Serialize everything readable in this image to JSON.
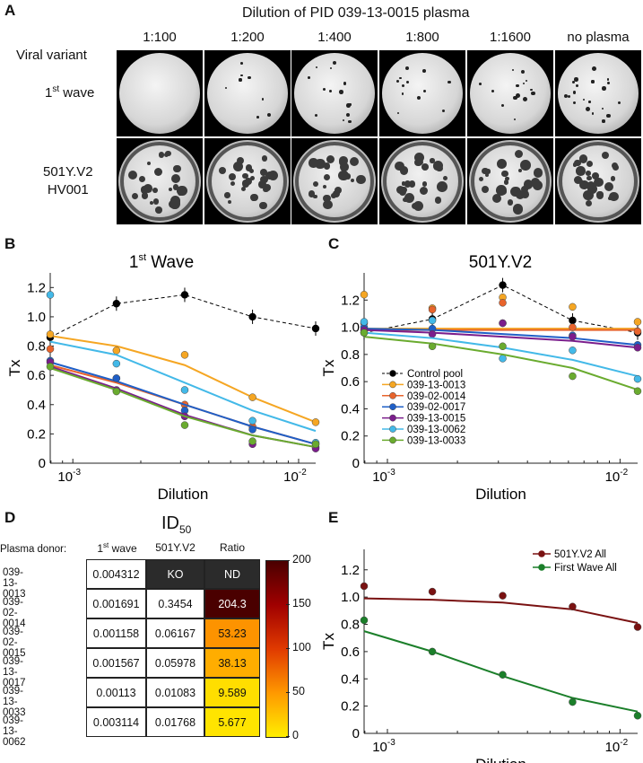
{
  "panels": {
    "A": "A",
    "B": "B",
    "C": "C",
    "D": "D",
    "E": "E"
  },
  "panelA": {
    "title": "Dilution of PID 039-13-0015 plasma",
    "dilutions": [
      "1:100",
      "1:200",
      "1:400",
      "1:800",
      "1:1600",
      "no plasma"
    ],
    "header_row": "Viral variant",
    "row1_label_main": "1",
    "row1_label_sup": "st",
    "row1_label_rest": " wave",
    "row2_label_line1": "501Y.V2",
    "row2_label_line2": "HV001"
  },
  "chart_data": [
    {
      "panel": "B",
      "type": "scatter",
      "title_main": "1",
      "title_sup": "st",
      "title_rest": " Wave",
      "xlabel": "Dilution",
      "ylabel": "Tx",
      "xscale": "log",
      "xlim": [
        0.000794,
        0.0119
      ],
      "ylim": [
        0,
        1.3
      ],
      "yticks": [
        "0",
        "0.2",
        "0.4",
        "0.6",
        "0.8",
        "1.0",
        "1.2"
      ],
      "xticks": [
        {
          "value": 0.001,
          "base": "10",
          "exp": "-3"
        },
        {
          "value": 0.01,
          "base": "10",
          "exp": "-2"
        }
      ],
      "x": [
        0.000794,
        0.00156,
        0.00313,
        0.00625,
        0.0119
      ],
      "control": {
        "name": "Control pool",
        "values": [
          0.86,
          1.09,
          1.15,
          1.0,
          0.92
        ],
        "color": "#000000"
      },
      "series": [
        {
          "color": "#f5a623",
          "points": [
            0.88,
            0.77,
            0.74,
            0.45,
            0.28
          ],
          "fit": [
            0.87,
            0.8,
            0.67,
            0.45,
            0.28
          ]
        },
        {
          "color": "#e8642c",
          "points": [
            0.78,
            0.58,
            0.4,
            0.25,
            0.13
          ],
          "fit": [
            0.67,
            0.55,
            0.4,
            0.25,
            0.13
          ]
        },
        {
          "color": "#1f5fc7",
          "points": [
            0.7,
            0.58,
            0.36,
            0.23,
            0.11
          ],
          "fit": [
            0.69,
            0.56,
            0.4,
            0.25,
            0.13
          ]
        },
        {
          "color": "#7b1e8c",
          "points": [
            0.69,
            0.5,
            0.32,
            0.13,
            0.1
          ],
          "fit": [
            0.66,
            0.51,
            0.33,
            0.19,
            0.11
          ]
        },
        {
          "color": "#43b9e8",
          "points": [
            1.15,
            0.68,
            0.5,
            0.29,
            0.14
          ],
          "fit": [
            0.83,
            0.74,
            0.55,
            0.36,
            0.22
          ]
        },
        {
          "color": "#6aab2f",
          "points": [
            0.66,
            0.49,
            0.26,
            0.15,
            0.13
          ],
          "fit": [
            0.65,
            0.5,
            0.32,
            0.19,
            0.11
          ]
        }
      ]
    },
    {
      "panel": "C",
      "type": "scatter",
      "title": "501Y.V2",
      "xlabel": "Dilution",
      "ylabel": "Tx",
      "xscale": "log",
      "xlim": [
        0.000794,
        0.0119
      ],
      "ylim": [
        0,
        1.4
      ],
      "yticks": [
        "0",
        "0.2",
        "0.4",
        "0.6",
        "0.8",
        "1.0",
        "1.2"
      ],
      "xticks": [
        {
          "value": 0.001,
          "base": "10",
          "exp": "-3"
        },
        {
          "value": 0.01,
          "base": "10",
          "exp": "-2"
        }
      ],
      "x": [
        0.000794,
        0.00156,
        0.00313,
        0.00625,
        0.0119
      ],
      "control": {
        "name": "Control pool",
        "values": [
          0.96,
          1.06,
          1.31,
          1.05,
          0.96
        ],
        "color": "#000000"
      },
      "series": [
        {
          "name": "039-13-0013",
          "color": "#f5a623",
          "points": [
            1.24,
            1.14,
            1.22,
            1.15,
            1.04
          ],
          "fit": [
            0.99,
            0.99,
            0.99,
            0.99,
            0.99
          ]
        },
        {
          "name": "039-02-0014",
          "color": "#e8642c",
          "points": [
            1.03,
            1.13,
            1.18,
            1.0,
            0.97
          ],
          "fit": [
            0.98,
            0.98,
            0.98,
            0.98,
            0.98
          ]
        },
        {
          "name": "039-02-0017",
          "color": "#1f5fc7",
          "points": [
            1.0,
            0.99,
            1.03,
            0.94,
            0.87
          ],
          "fit": [
            0.99,
            0.98,
            0.95,
            0.92,
            0.87
          ]
        },
        {
          "name": "039-13-0015",
          "color": "#7b1e8c",
          "points": [
            0.98,
            0.95,
            1.03,
            0.93,
            0.85
          ],
          "fit": [
            0.98,
            0.96,
            0.93,
            0.9,
            0.85
          ]
        },
        {
          "name": "039-13-0062",
          "color": "#43b9e8",
          "points": [
            1.04,
            1.05,
            0.77,
            0.83,
            0.62
          ],
          "fit": [
            0.96,
            0.92,
            0.85,
            0.76,
            0.64
          ]
        },
        {
          "name": "039-13-0033",
          "color": "#6aab2f",
          "points": [
            0.96,
            0.86,
            0.86,
            0.64,
            0.53
          ],
          "fit": [
            0.93,
            0.88,
            0.8,
            0.7,
            0.54
          ]
        }
      ]
    },
    {
      "panel": "E",
      "type": "scatter",
      "xlabel": "Dilution",
      "ylabel": "Tx",
      "xscale": "log",
      "xlim": [
        0.000794,
        0.0119
      ],
      "ylim": [
        0,
        1.35
      ],
      "yticks": [
        "0",
        "0.2",
        "0.4",
        "0.6",
        "0.8",
        "1.0",
        "1.2"
      ],
      "xticks": [
        {
          "value": 0.001,
          "base": "10",
          "exp": "-3"
        },
        {
          "value": 0.01,
          "base": "10",
          "exp": "-2"
        }
      ],
      "x": [
        0.000794,
        0.00156,
        0.00313,
        0.00625,
        0.0119
      ],
      "series": [
        {
          "name": "501Y.V2 All",
          "color": "#7a1212",
          "points": [
            1.08,
            1.04,
            1.01,
            0.93,
            0.78
          ],
          "fit": [
            0.99,
            0.98,
            0.96,
            0.91,
            0.81
          ]
        },
        {
          "name": "First Wave All",
          "color": "#1b7f2a",
          "points": [
            0.83,
            0.6,
            0.43,
            0.23,
            0.13
          ],
          "fit": [
            0.75,
            0.6,
            0.42,
            0.26,
            0.16
          ]
        }
      ]
    }
  ],
  "panelD": {
    "title_main": "ID",
    "title_sub": "50",
    "row_header": "Plasma donor:",
    "col1_main": "1",
    "col1_sup": "st",
    "col1_rest": " wave",
    "col2": "501Y.V2",
    "col3": "Ratio",
    "rows": [
      {
        "donor": "039-13-0013",
        "first": "0.004312",
        "v2": "KO",
        "ratio": "ND",
        "ratio_val": null
      },
      {
        "donor": "039-02-0014",
        "first": "0.001691",
        "v2": "0.3454",
        "ratio": "204.3",
        "ratio_val": 204.3
      },
      {
        "donor": "039-02-0015",
        "first": "0.001158",
        "v2": "0.06167",
        "ratio": "53.23",
        "ratio_val": 53.23
      },
      {
        "donor": "039-13-0017",
        "first": "0.001567",
        "v2": "0.05978",
        "ratio": "38.13",
        "ratio_val": 38.13
      },
      {
        "donor": "039-13-0033",
        "first": "0.00113",
        "v2": "0.01083",
        "ratio": "9.589",
        "ratio_val": 9.589
      },
      {
        "donor": "039-13-0062",
        "first": "0.003114",
        "v2": "0.01768",
        "ratio": "5.677",
        "ratio_val": 5.677
      }
    ],
    "colorbar_ticks": [
      "0",
      "50",
      "100",
      "150",
      "200"
    ],
    "colorbar_colors": [
      "#ffee00",
      "#ff9900",
      "#e03a00",
      "#a00000",
      "#4a0000"
    ]
  }
}
